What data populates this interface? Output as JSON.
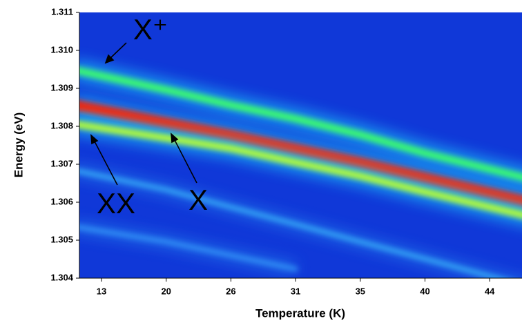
{
  "chart_data": {
    "type": "heatmap",
    "xlabel": "Temperature (K)",
    "ylabel": "Energy (eV)",
    "categories": [
      "13",
      "20",
      "26",
      "31",
      "35",
      "40",
      "44"
    ],
    "ylim": [
      1.304,
      1.311
    ],
    "yticks": [
      1.304,
      1.305,
      1.306,
      1.307,
      1.308,
      1.309,
      {
        "value": 1.31,
        "label": "1.310"
      },
      1.311
    ],
    "background": "#1038d8",
    "series": [
      {
        "name": "X⁺",
        "color": "#3cff6a",
        "values": [
          1.30933,
          1.30896,
          1.30856,
          1.3082,
          1.30778,
          1.30729,
          1.30687
        ]
      },
      {
        "name": "X",
        "color": "#ff1a00",
        "values": [
          1.30842,
          1.30809,
          1.30776,
          1.3074,
          1.30704,
          1.30664,
          1.30624
        ]
      },
      {
        "name": "XX",
        "color": "#b8ff30",
        "values": [
          1.30795,
          1.30769,
          1.30742,
          1.30705,
          1.30669,
          1.30627,
          1.30587
        ]
      },
      {
        "color": "#40c8ff",
        "values": [
          1.30669,
          1.30633,
          1.30587,
          1.30542,
          1.30496,
          1.30451,
          1.30405
        ]
      },
      {
        "color": "#3aa8ff",
        "values": [
          1.30524,
          1.30496,
          1.3046,
          1.30424,
          null,
          null,
          null
        ]
      }
    ]
  }
}
